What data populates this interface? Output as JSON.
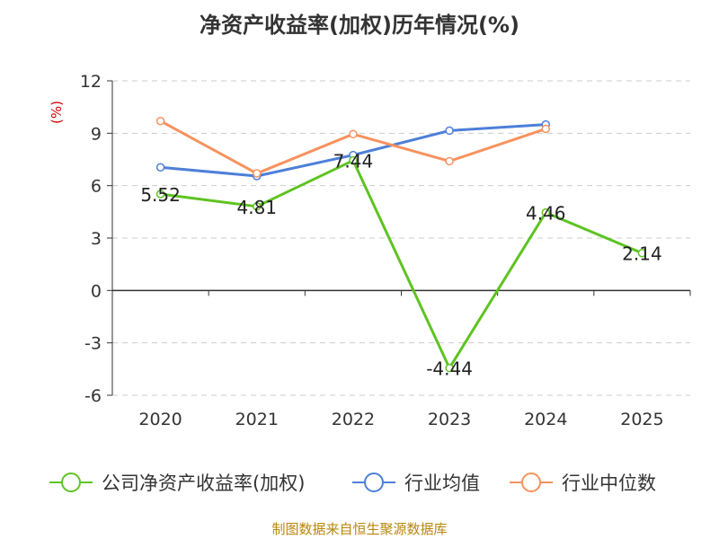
{
  "chart_data": {
    "type": "line",
    "title": "净资产收益率(加权)历年情况(%)",
    "ylabel": "(%)",
    "categories": [
      "2020",
      "2021",
      "2022",
      "2023",
      "2024",
      "2025"
    ],
    "ylim": [
      -6,
      12
    ],
    "yticks": [
      "12",
      "9",
      "6",
      "3",
      "0",
      "-3",
      "-6"
    ],
    "yticks_values": [
      12,
      9,
      6,
      3,
      0,
      -3,
      -6
    ],
    "grid": true,
    "legend_position": "bottom",
    "series": [
      {
        "name": "公司净资产收益率(加权)",
        "color": "#5ec322",
        "values": [
          5.52,
          4.81,
          7.44,
          -4.44,
          4.46,
          2.14
        ],
        "labels": [
          "5.52",
          "4.81",
          "7.44",
          "-4.44",
          "4.46",
          "2.14"
        ]
      },
      {
        "name": "行业均值",
        "color": "#4e7fd8",
        "values": [
          7.05,
          6.55,
          7.75,
          9.15,
          9.5,
          null
        ]
      },
      {
        "name": "行业中位数",
        "color": "#f7925e",
        "values": [
          9.7,
          6.7,
          8.95,
          7.4,
          9.25,
          null
        ]
      }
    ]
  },
  "source_note": "制图数据来自恒生聚源数据库"
}
